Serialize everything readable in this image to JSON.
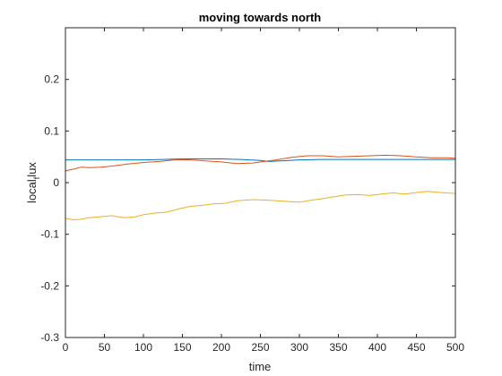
{
  "chart_data": {
    "type": "line",
    "title": "moving towards north",
    "xlabel": "time",
    "ylabel_main": "local",
    "ylabel_subscript": "f",
    "ylabel_tail": "lux",
    "xlim": [
      0,
      500
    ],
    "ylim": [
      -0.3,
      0.3
    ],
    "xticks": [
      0,
      50,
      100,
      150,
      200,
      250,
      300,
      350,
      400,
      450,
      500
    ],
    "yticks": [
      -0.3,
      -0.2,
      -0.1,
      0,
      0.1,
      0.2
    ],
    "ytick_labels": [
      "-0.3",
      "-0.2",
      "-0.1",
      "0",
      "0.1",
      "0.2"
    ],
    "grid": false,
    "box": true,
    "series": [
      {
        "color": "#0072BD",
        "x": [
          0,
          25,
          50,
          75,
          100,
          125,
          150,
          175,
          200,
          225,
          250,
          260,
          275,
          300,
          325,
          350,
          375,
          400,
          425,
          450,
          475,
          500
        ],
        "y": [
          0.044,
          0.044,
          0.044,
          0.044,
          0.044,
          0.045,
          0.046,
          0.046,
          0.046,
          0.045,
          0.043,
          0.041,
          0.042,
          0.044,
          0.045,
          0.045,
          0.045,
          0.045,
          0.045,
          0.045,
          0.045,
          0.045
        ]
      },
      {
        "color": "#D95319",
        "x": [
          0,
          10,
          20,
          30,
          45,
          60,
          80,
          100,
          120,
          140,
          160,
          180,
          200,
          220,
          240,
          255,
          270,
          290,
          310,
          330,
          350,
          370,
          390,
          410,
          430,
          450,
          470,
          490,
          500
        ],
        "y": [
          0.023,
          0.026,
          0.03,
          0.029,
          0.03,
          0.032,
          0.036,
          0.039,
          0.041,
          0.044,
          0.044,
          0.042,
          0.04,
          0.037,
          0.038,
          0.041,
          0.044,
          0.049,
          0.052,
          0.052,
          0.05,
          0.051,
          0.052,
          0.053,
          0.052,
          0.05,
          0.048,
          0.048,
          0.047
        ]
      },
      {
        "color": "#EDB120",
        "x": [
          0,
          10,
          20,
          30,
          45,
          60,
          75,
          90,
          100,
          115,
          130,
          145,
          160,
          175,
          190,
          205,
          220,
          240,
          260,
          280,
          300,
          315,
          330,
          345,
          360,
          375,
          390,
          405,
          420,
          435,
          450,
          465,
          480,
          500
        ],
        "y": [
          -0.069,
          -0.072,
          -0.071,
          -0.068,
          -0.066,
          -0.064,
          -0.068,
          -0.066,
          -0.062,
          -0.059,
          -0.057,
          -0.051,
          -0.046,
          -0.044,
          -0.041,
          -0.04,
          -0.035,
          -0.033,
          -0.034,
          -0.036,
          -0.038,
          -0.034,
          -0.031,
          -0.027,
          -0.024,
          -0.023,
          -0.025,
          -0.022,
          -0.02,
          -0.022,
          -0.019,
          -0.017,
          -0.019,
          -0.021
        ]
      }
    ]
  }
}
